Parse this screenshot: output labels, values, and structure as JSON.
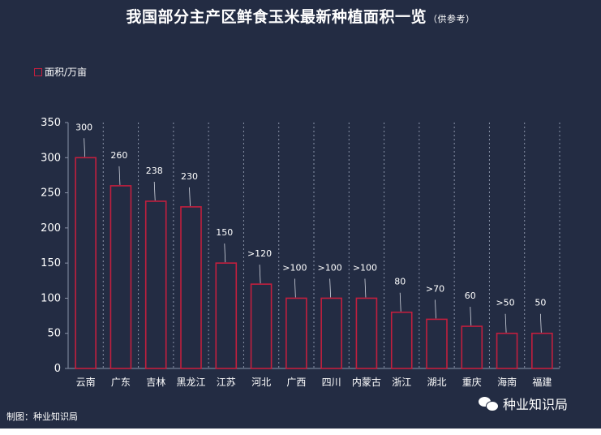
{
  "title": "我国部分主产区鲜食玉米最新种植面积一览",
  "subtitle": "（供参考）",
  "footer": "制图：种业知识局",
  "brand": "种业知识局",
  "colors": {
    "background": "#232c43",
    "bar": "#c21f3e",
    "text": "#ffffff",
    "grid": "#8a93a8"
  },
  "chart_data": {
    "type": "bar",
    "title": "我国部分主产区鲜食玉米最新种植面积一览",
    "categories": [
      "云南",
      "广东",
      "吉林",
      "黑龙江",
      "江苏",
      "河北",
      "广西",
      "四川",
      "内蒙古",
      "浙江",
      "湖北",
      "重庆",
      "海南",
      "福建"
    ],
    "series": [
      {
        "name": "面积/万亩",
        "values": [
          300,
          260,
          238,
          230,
          150,
          120,
          100,
          100,
          100,
          80,
          70,
          60,
          50,
          50
        ],
        "labels": [
          "300",
          "260",
          "238",
          "230",
          "150",
          ">120",
          ">100",
          ">100",
          ">100",
          "80",
          ">70",
          "60",
          ">50",
          "50"
        ]
      }
    ],
    "ylim": [
      0,
      350
    ],
    "yticks": [
      0,
      50,
      100,
      150,
      200,
      250,
      300,
      350
    ],
    "legend": "top-left",
    "grid": "vertical-dotted"
  }
}
